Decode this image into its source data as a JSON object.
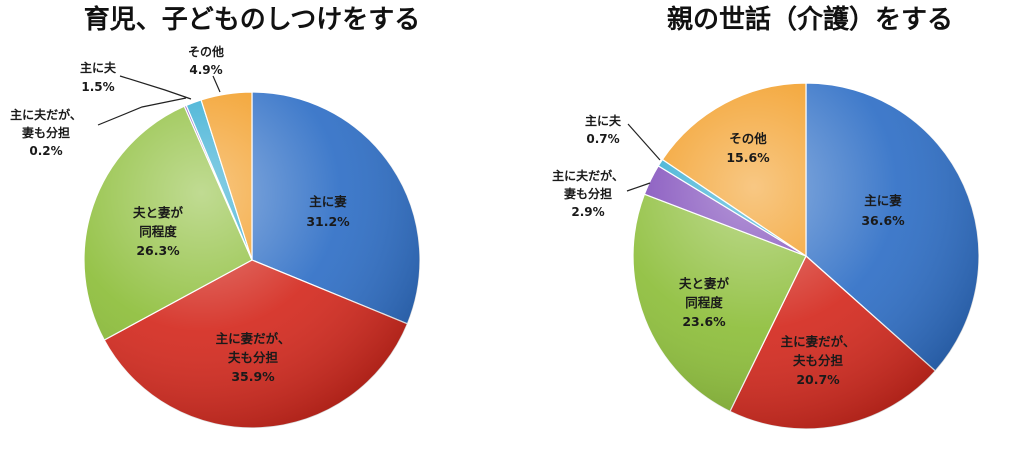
{
  "colors": {
    "blue": "#2F6FC6",
    "red": "#D42A1F",
    "green": "#8DBE3A",
    "purple": "#7A45B8",
    "cyan": "#2BA8D0",
    "orange": "#F29A1E"
  },
  "chart_data": [
    {
      "type": "pie",
      "title": "育児、子どものしつけをする",
      "slices": [
        {
          "label": "主に妻",
          "value": 31.2,
          "value_text": "31.2%",
          "color": "blue"
        },
        {
          "label": "主に妻だが、夫も分担",
          "value": 35.9,
          "value_text": "35.9%",
          "color": "red"
        },
        {
          "label": "夫と妻が同程度",
          "value": 26.3,
          "value_text": "26.3%",
          "color": "green"
        },
        {
          "label": "主に夫だが、妻も分担",
          "value": 0.2,
          "value_text": "0.2%",
          "color": "purple"
        },
        {
          "label": "主に夫",
          "value": 1.5,
          "value_text": "1.5%",
          "color": "cyan"
        },
        {
          "label": "その他",
          "value": 4.9,
          "value_text": "4.9%",
          "color": "orange"
        }
      ]
    },
    {
      "type": "pie",
      "title": "親の世話（介護）をする",
      "slices": [
        {
          "label": "主に妻",
          "value": 36.6,
          "value_text": "36.6%",
          "color": "blue"
        },
        {
          "label": "主に妻だが、夫も分担",
          "value": 20.7,
          "value_text": "20.7%",
          "color": "red"
        },
        {
          "label": "夫と妻が同程度",
          "value": 23.6,
          "value_text": "23.6%",
          "color": "green"
        },
        {
          "label": "主に夫だが、妻も分担",
          "value": 2.9,
          "value_text": "2.9%",
          "color": "purple"
        },
        {
          "label": "主に夫",
          "value": 0.7,
          "value_text": "0.7%",
          "color": "cyan"
        },
        {
          "label": "その他",
          "value": 15.6,
          "value_text": "15.6%",
          "color": "orange"
        }
      ]
    }
  ],
  "labels": {
    "left": {
      "wife_main": [
        "主に妻",
        "31.2%"
      ],
      "wife_main_husband_shares": [
        "主に妻だが、",
        "夫も分担",
        "35.9%"
      ],
      "equal": [
        "夫と妻が",
        "同程度",
        "26.3%"
      ],
      "husband_main_wife_shares": [
        "主に夫だが、",
        "妻も分担",
        "0.2%"
      ],
      "husband_main": [
        "主に夫",
        "1.5%"
      ],
      "other": [
        "その他",
        "4.9%"
      ]
    },
    "right": {
      "wife_main": [
        "主に妻",
        "36.6%"
      ],
      "wife_main_husband_shares": [
        "主に妻だが、",
        "夫も分担",
        "20.7%"
      ],
      "equal": [
        "夫と妻が",
        "同程度",
        "23.6%"
      ],
      "husband_main_wife_shares": [
        "主に夫だが、",
        "妻も分担",
        "2.9%"
      ],
      "husband_main": [
        "主に夫",
        "0.7%"
      ],
      "other": [
        "その他",
        "15.6%"
      ]
    }
  }
}
